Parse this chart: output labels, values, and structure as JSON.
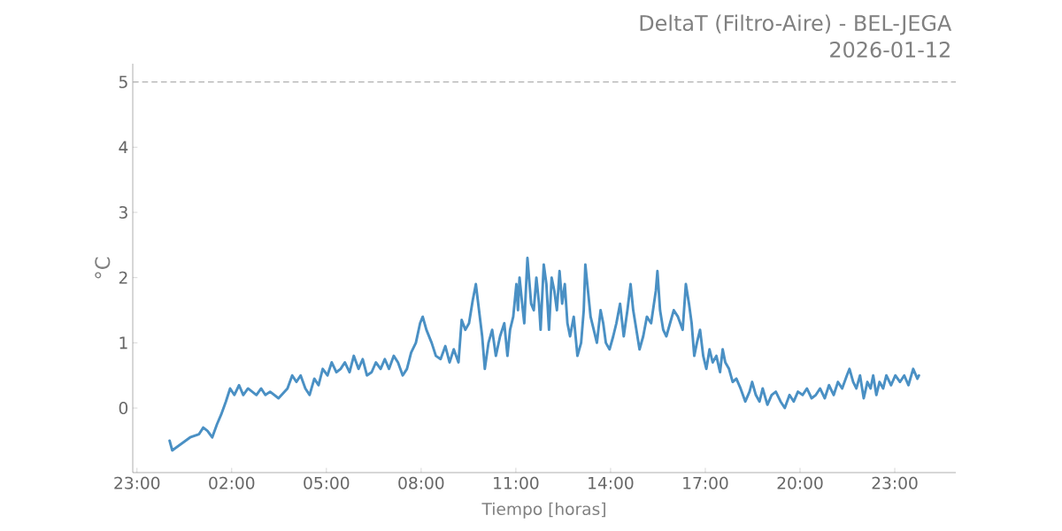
{
  "chart_data": {
    "type": "line",
    "title": "DeltaT (Filtro-Aire) - BEL-JEGA",
    "subtitle": "2026-01-12",
    "xlabel": "Tiempo [horas]",
    "ylabel": "°C",
    "xlim": [
      "2026-01-11T22:52",
      "2026-01-13T00:56"
    ],
    "ylim": [
      -0.99,
      5.28
    ],
    "xticks": [
      {
        "value": "2026-01-11T23:00",
        "label": "23:00"
      },
      {
        "value": "2026-01-12T02:00",
        "label": "02:00"
      },
      {
        "value": "2026-01-12T05:00",
        "label": "05:00"
      },
      {
        "value": "2026-01-12T08:00",
        "label": "08:00"
      },
      {
        "value": "2026-01-12T11:00",
        "label": "11:00"
      },
      {
        "value": "2026-01-12T14:00",
        "label": "14:00"
      },
      {
        "value": "2026-01-12T17:00",
        "label": "17:00"
      },
      {
        "value": "2026-01-12T20:00",
        "label": "20:00"
      },
      {
        "value": "2026-01-12T23:00",
        "label": "23:00"
      }
    ],
    "yticks": [
      0,
      1,
      2,
      3,
      4,
      5
    ],
    "ref_lines": [
      {
        "axis": "y",
        "value": 5,
        "color": "#b0b0b0",
        "line_style": "dashed"
      }
    ],
    "grid": false,
    "series": [
      {
        "color": "#4a90c4",
        "x": [
          "2026-01-12T00:02",
          "2026-01-12T00:07",
          "2026-01-12T00:24",
          "2026-01-12T00:41",
          "2026-01-12T00:58",
          "2026-01-12T01:06",
          "2026-01-12T01:14",
          "2026-01-12T01:23",
          "2026-01-12T01:32",
          "2026-01-12T01:40",
          "2026-01-12T01:49",
          "2026-01-12T01:57",
          "2026-01-12T02:05",
          "2026-01-12T02:14",
          "2026-01-12T02:22",
          "2026-01-12T02:31",
          "2026-01-12T02:47",
          "2026-01-12T02:56",
          "2026-01-12T03:04",
          "2026-01-12T03:13",
          "2026-01-12T03:29",
          "2026-01-12T03:46",
          "2026-01-12T03:55",
          "2026-01-12T04:03",
          "2026-01-12T04:11",
          "2026-01-12T04:20",
          "2026-01-12T04:28",
          "2026-01-12T04:37",
          "2026-01-12T04:45",
          "2026-01-12T04:53",
          "2026-01-12T05:02",
          "2026-01-12T05:10",
          "2026-01-12T05:19",
          "2026-01-12T05:27",
          "2026-01-12T05:35",
          "2026-01-12T05:44",
          "2026-01-12T05:52",
          "2026-01-12T06:01",
          "2026-01-12T06:09",
          "2026-01-12T06:17",
          "2026-01-12T06:26",
          "2026-01-12T06:34",
          "2026-01-12T06:43",
          "2026-01-12T06:51",
          "2026-01-12T06:59",
          "2026-01-12T07:08",
          "2026-01-12T07:16",
          "2026-01-12T07:25",
          "2026-01-12T07:33",
          "2026-01-12T07:41",
          "2026-01-12T07:50",
          "2026-01-12T07:58",
          "2026-01-12T08:03",
          "2026-01-12T08:10",
          "2026-01-12T08:20",
          "2026-01-12T08:28",
          "2026-01-12T08:37",
          "2026-01-12T08:46",
          "2026-01-12T08:54",
          "2026-01-12T09:02",
          "2026-01-12T09:11",
          "2026-01-12T09:17",
          "2026-01-12T09:24",
          "2026-01-12T09:31",
          "2026-01-12T09:38",
          "2026-01-12T09:44",
          "2026-01-12T09:50",
          "2026-01-12T09:56",
          "2026-01-12T10:01",
          "2026-01-12T10:08",
          "2026-01-12T10:15",
          "2026-01-12T10:22",
          "2026-01-12T10:30",
          "2026-01-12T10:38",
          "2026-01-12T10:44",
          "2026-01-12T10:49",
          "2026-01-12T10:55",
          "2026-01-12T11:01",
          "2026-01-12T11:04",
          "2026-01-12T11:07",
          "2026-01-12T11:12",
          "2026-01-12T11:16",
          "2026-01-12T11:22",
          "2026-01-12T11:29",
          "2026-01-12T11:34",
          "2026-01-12T11:39",
          "2026-01-12T11:44",
          "2026-01-12T11:47",
          "2026-01-12T11:53",
          "2026-01-12T11:58",
          "2026-01-12T12:03",
          "2026-01-12T12:08",
          "2026-01-12T12:13",
          "2026-01-12T12:18",
          "2026-01-12T12:23",
          "2026-01-12T12:28",
          "2026-01-12T12:33",
          "2026-01-12T12:38",
          "2026-01-12T12:43",
          "2026-01-12T12:50",
          "2026-01-12T12:57",
          "2026-01-12T13:04",
          "2026-01-12T13:09",
          "2026-01-12T13:12",
          "2026-01-12T13:17",
          "2026-01-12T13:22",
          "2026-01-12T13:28",
          "2026-01-12T13:34",
          "2026-01-12T13:41",
          "2026-01-12T13:46",
          "2026-01-12T13:51",
          "2026-01-12T13:58",
          "2026-01-12T14:05",
          "2026-01-12T14:11",
          "2026-01-12T14:18",
          "2026-01-12T14:25",
          "2026-01-12T14:32",
          "2026-01-12T14:38",
          "2026-01-12T14:43",
          "2026-01-12T14:49",
          "2026-01-12T14:55",
          "2026-01-12T15:02",
          "2026-01-12T15:09",
          "2026-01-12T15:17",
          "2026-01-12T15:26",
          "2026-01-12T15:29",
          "2026-01-12T15:34",
          "2026-01-12T15:40",
          "2026-01-12T15:46",
          "2026-01-12T15:53",
          "2026-01-12T16:00",
          "2026-01-12T16:08",
          "2026-01-12T16:17",
          "2026-01-12T16:23",
          "2026-01-12T16:29",
          "2026-01-12T16:34",
          "2026-01-12T16:39",
          "2026-01-12T16:44",
          "2026-01-12T16:50",
          "2026-01-12T16:56",
          "2026-01-12T17:02",
          "2026-01-12T17:08",
          "2026-01-12T17:14",
          "2026-01-12T17:21",
          "2026-01-12T17:28",
          "2026-01-12T17:33",
          "2026-01-12T17:38",
          "2026-01-12T17:45",
          "2026-01-12T17:52",
          "2026-01-12T17:59",
          "2026-01-12T18:07",
          "2026-01-12T18:16",
          "2026-01-12T18:24",
          "2026-01-12T18:29",
          "2026-01-12T18:36",
          "2026-01-12T18:43",
          "2026-01-12T18:49",
          "2026-01-12T18:58",
          "2026-01-12T19:06",
          "2026-01-12T19:14",
          "2026-01-12T19:23",
          "2026-01-12T19:31",
          "2026-01-12T19:40",
          "2026-01-12T19:48",
          "2026-01-12T19:56",
          "2026-01-12T20:05",
          "2026-01-12T20:13",
          "2026-01-12T20:22",
          "2026-01-12T20:30",
          "2026-01-12T20:38",
          "2026-01-12T20:47",
          "2026-01-12T20:55",
          "2026-01-12T21:04",
          "2026-01-12T21:12",
          "2026-01-12T21:20",
          "2026-01-12T21:29",
          "2026-01-12T21:34",
          "2026-01-12T21:41",
          "2026-01-12T21:47",
          "2026-01-12T21:54",
          "2026-01-12T22:01",
          "2026-01-12T22:08",
          "2026-01-12T22:14",
          "2026-01-12T22:19",
          "2026-01-12T22:25",
          "2026-01-12T22:31",
          "2026-01-12T22:38",
          "2026-01-12T22:44",
          "2026-01-12T22:53",
          "2026-01-12T23:01",
          "2026-01-12T23:10",
          "2026-01-12T23:18",
          "2026-01-12T23:26",
          "2026-01-12T23:35",
          "2026-01-12T23:43",
          "2026-01-12T23:46"
        ],
        "values": [
          -0.5,
          -0.65,
          -0.55,
          -0.45,
          -0.4,
          -0.3,
          -0.35,
          -0.45,
          -0.25,
          -0.1,
          0.1,
          0.3,
          0.2,
          0.35,
          0.2,
          0.3,
          0.2,
          0.3,
          0.2,
          0.25,
          0.15,
          0.3,
          0.5,
          0.4,
          0.5,
          0.3,
          0.2,
          0.45,
          0.35,
          0.6,
          0.5,
          0.7,
          0.55,
          0.6,
          0.7,
          0.55,
          0.8,
          0.6,
          0.75,
          0.5,
          0.55,
          0.7,
          0.6,
          0.75,
          0.6,
          0.8,
          0.7,
          0.5,
          0.6,
          0.85,
          1.0,
          1.3,
          1.4,
          1.2,
          1.0,
          0.8,
          0.75,
          0.95,
          0.7,
          0.9,
          0.7,
          1.35,
          1.2,
          1.3,
          1.65,
          1.9,
          1.5,
          1.1,
          0.6,
          1.0,
          1.2,
          0.8,
          1.1,
          1.3,
          0.8,
          1.2,
          1.4,
          1.9,
          1.5,
          2.0,
          1.6,
          1.3,
          2.3,
          1.6,
          1.5,
          2.0,
          1.6,
          1.2,
          2.2,
          1.9,
          1.2,
          2.0,
          1.8,
          1.5,
          2.1,
          1.6,
          1.9,
          1.3,
          1.1,
          1.4,
          0.8,
          1.0,
          1.5,
          2.2,
          1.8,
          1.4,
          1.2,
          1.0,
          1.5,
          1.3,
          1.0,
          0.9,
          1.1,
          1.3,
          1.6,
          1.1,
          1.5,
          1.9,
          1.5,
          1.2,
          0.9,
          1.1,
          1.4,
          1.3,
          1.8,
          2.1,
          1.5,
          1.2,
          1.1,
          1.3,
          1.5,
          1.4,
          1.2,
          1.9,
          1.6,
          1.3,
          0.8,
          1.0,
          1.2,
          0.8,
          0.6,
          0.9,
          0.7,
          0.8,
          0.55,
          0.9,
          0.7,
          0.6,
          0.4,
          0.45,
          0.3,
          0.1,
          0.25,
          0.4,
          0.2,
          0.1,
          0.3,
          0.05,
          0.2,
          0.25,
          0.1,
          0.0,
          0.2,
          0.1,
          0.25,
          0.2,
          0.3,
          0.15,
          0.2,
          0.3,
          0.15,
          0.35,
          0.2,
          0.4,
          0.3,
          0.5,
          0.6,
          0.4,
          0.3,
          0.5,
          0.15,
          0.4,
          0.3,
          0.5,
          0.2,
          0.4,
          0.3,
          0.5,
          0.35,
          0.5,
          0.4,
          0.5,
          0.35,
          0.6,
          0.45,
          0.5
        ]
      }
    ]
  }
}
